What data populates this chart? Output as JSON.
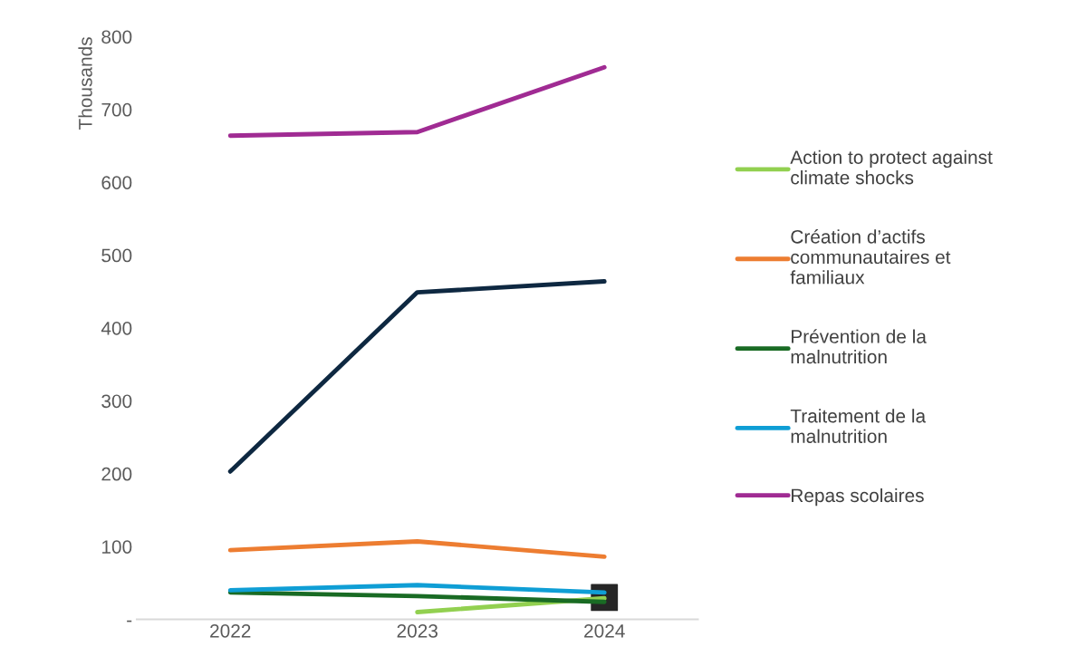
{
  "chart_data": {
    "type": "line",
    "categories": [
      "2022",
      "2023",
      "2024"
    ],
    "ylabel": "Thousands",
    "ylim": [
      0,
      800
    ],
    "yticks": [
      {
        "value": 0,
        "label": "-"
      },
      100,
      200,
      300,
      400,
      500,
      600,
      700,
      800
    ],
    "grid": false,
    "legend": "right",
    "marker": "none",
    "line_style": "solid",
    "series": [
      {
        "name": "Action to protect against climate shocks",
        "color": "#92d050",
        "values": [
          null,
          10,
          29
        ]
      },
      {
        "name": "Création d’actifs communautaires et familiaux",
        "color": "#ed7d31",
        "values": [
          95,
          107,
          86
        ]
      },
      {
        "name": "Prévention de la malnutrition",
        "color": "#196b24",
        "values": [
          37,
          32,
          24
        ]
      },
      {
        "name": "Traitement de la malnutrition",
        "color": "#0f9ed5",
        "values": [
          40,
          47,
          37
        ]
      },
      {
        "name": "Repas scolaires",
        "color": "#a02b93",
        "values": [
          664,
          669,
          758
        ]
      },
      {
        "color": "#0e2841",
        "values": [
          203,
          449,
          464
        ]
      },
      {
        "type": "scatter",
        "marker": "square",
        "color": "#262626",
        "values": [
          null,
          null,
          30
        ]
      }
    ]
  }
}
